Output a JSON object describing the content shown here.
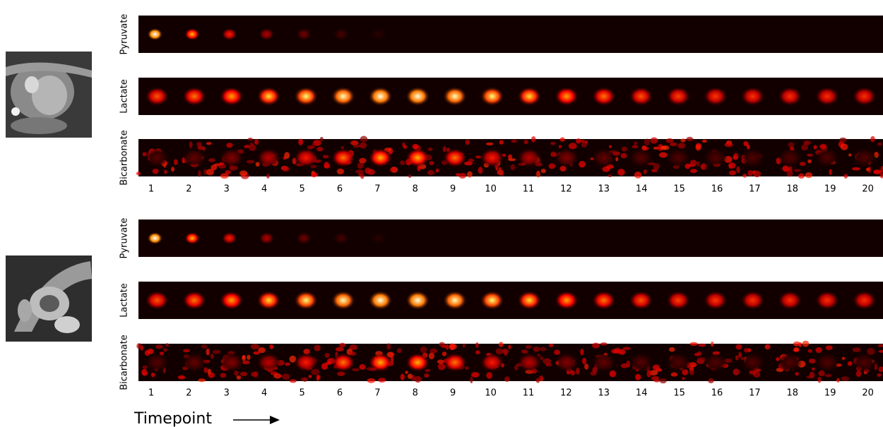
{
  "panels": [
    {
      "rows": [
        {
          "label": "Pyruvate"
        },
        {
          "label": "Lactate"
        },
        {
          "label": "Bicarbonate"
        }
      ],
      "timepoints": [
        1,
        2,
        3,
        4,
        5,
        6,
        7,
        8,
        9,
        10,
        11,
        12,
        13,
        14,
        15,
        16,
        17,
        18,
        19,
        20
      ]
    },
    {
      "rows": [
        {
          "label": "Pyruvate"
        },
        {
          "label": "Lactate"
        },
        {
          "label": "Bicarbonate"
        }
      ],
      "timepoints": [
        1,
        2,
        3,
        4,
        5,
        6,
        7,
        8,
        9,
        10,
        11,
        12,
        13,
        14,
        15,
        16,
        17,
        18,
        19,
        20
      ]
    }
  ],
  "axis_label": "Timepoint"
}
